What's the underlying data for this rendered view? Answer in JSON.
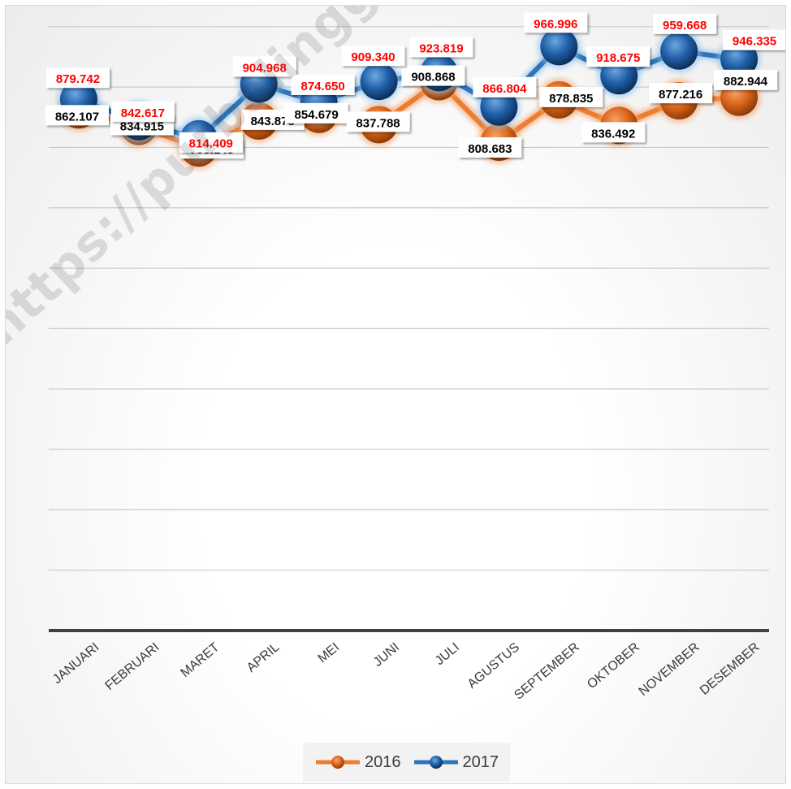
{
  "chart_data": {
    "type": "line",
    "title": "",
    "xlabel": "",
    "ylabel": "",
    "categories": [
      "JANUARI",
      "FEBRUARI",
      "MARET",
      "APRIL",
      "MEI",
      "JUNI",
      "JULI",
      "AGUSTUS",
      "SEPTEMBER",
      "OKTOBER",
      "NOVEMBER",
      "DESEMBER"
    ],
    "series": [
      {
        "name": "2016",
        "color": "#ed7d31",
        "values": [
          862107,
          834915,
          799143,
          843878,
          854679,
          837788,
          908868,
          808683,
          878835,
          836492,
          877216,
          882944
        ],
        "labels": [
          "862.107",
          "834.915",
          "799.143",
          "843.878",
          "854.679",
          "837.788",
          "908.868",
          "808.683",
          "878.835",
          "836.492",
          "877.216",
          "882.944"
        ],
        "label_color": "#000000"
      },
      {
        "name": "2017",
        "color": "#2e75b6",
        "values": [
          879742,
          842617,
          814409,
          904968,
          874650,
          909340,
          923819,
          866804,
          966996,
          918675,
          959668,
          946335
        ],
        "labels": [
          "879.742",
          "842.617",
          "814.409",
          "904.968",
          "874.650",
          "909.340",
          "923.819",
          "866.804",
          "966.996",
          "918.675",
          "959.668",
          "946.335"
        ],
        "label_color": "#ff0000"
      }
    ],
    "ylim": [
      0,
      1000000
    ],
    "grid": true,
    "legend": "bottom"
  },
  "watermark": "https://purbalinggakab.bps.go.id"
}
